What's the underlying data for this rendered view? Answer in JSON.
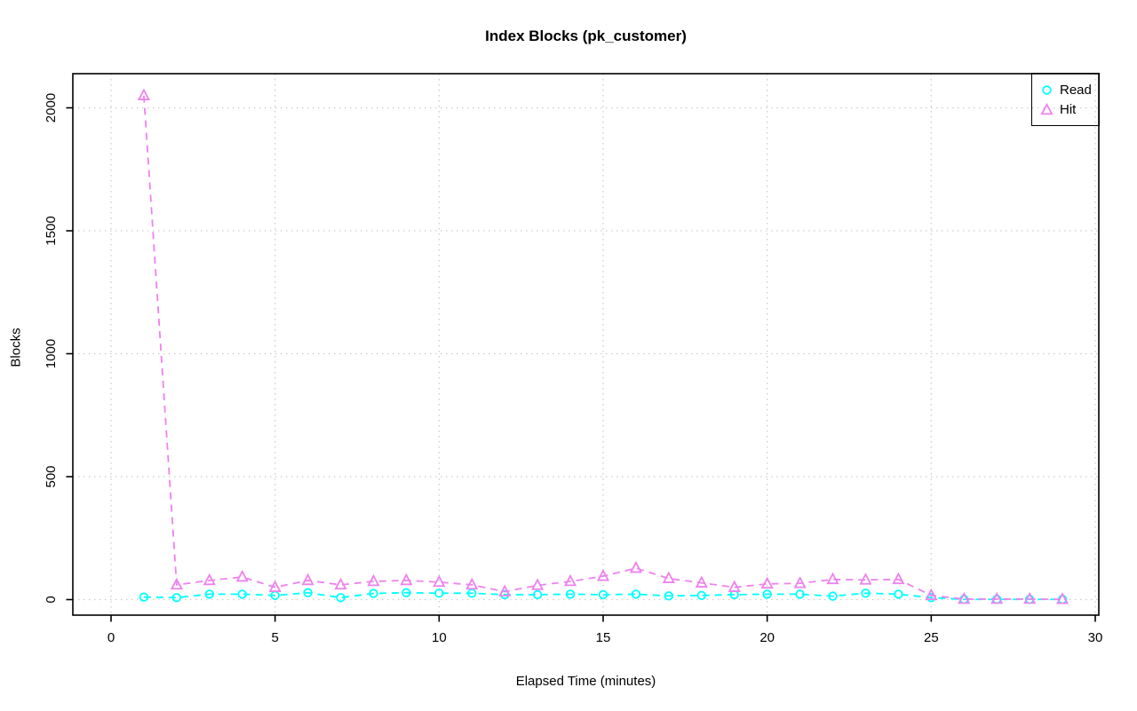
{
  "title": "Index Blocks (pk_customer)",
  "chart_data": {
    "type": "line",
    "title": "Index Blocks (pk_customer)",
    "xlabel": "Elapsed Time (minutes)",
    "ylabel": "Blocks",
    "xlim": [
      0,
      30
    ],
    "ylim": [
      0,
      2050
    ],
    "xticks": [
      0,
      5,
      10,
      15,
      20,
      25,
      30
    ],
    "yticks": [
      0,
      500,
      1000,
      1500,
      2000
    ],
    "grid": "dotted",
    "grid_color": "#cccccc",
    "legend_position": "top-right",
    "x": [
      1,
      2,
      3,
      4,
      5,
      6,
      7,
      8,
      9,
      10,
      11,
      12,
      13,
      14,
      15,
      16,
      17,
      18,
      19,
      20,
      21,
      22,
      23,
      24,
      25,
      26,
      27,
      28,
      29
    ],
    "series": [
      {
        "name": "Read",
        "color": "#00ffff",
        "marker": "circle",
        "linestyle": "dashed",
        "values": [
          10,
          8,
          22,
          22,
          17,
          28,
          8,
          25,
          28,
          26,
          26,
          20,
          20,
          22,
          20,
          22,
          15,
          17,
          20,
          22,
          22,
          14,
          26,
          22,
          8,
          1,
          1,
          1,
          1
        ]
      },
      {
        "name": "Hit",
        "color": "#ee82ee",
        "marker": "triangle",
        "linestyle": "dashed",
        "values": [
          2050,
          60,
          78,
          92,
          50,
          78,
          60,
          74,
          78,
          71,
          60,
          32,
          58,
          74,
          95,
          128,
          86,
          68,
          50,
          64,
          66,
          82,
          80,
          82,
          17,
          2,
          2,
          2,
          1
        ]
      }
    ]
  }
}
